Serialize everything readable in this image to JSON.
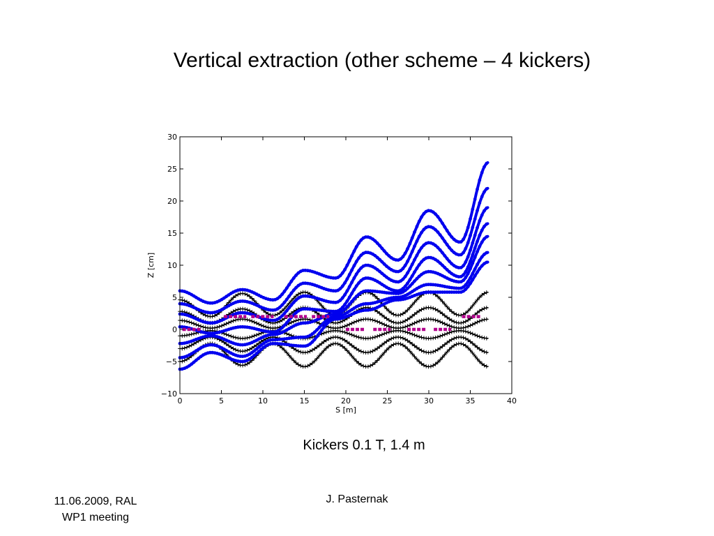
{
  "slide": {
    "title": "Vertical extraction (other scheme – 4 kickers)",
    "caption": "Kickers 0.1 T, 1.4 m",
    "footer_left_line1": "11.06.2009, RAL",
    "footer_left_line2": "WP1 meeting",
    "footer_center": "J. Pasternak"
  },
  "chart_data": {
    "type": "scatter",
    "title": "",
    "xlabel": "S [m]",
    "ylabel": "Z [cm]",
    "xlim": [
      0,
      40
    ],
    "ylim": [
      -10,
      30
    ],
    "xticks": [
      0,
      5,
      10,
      15,
      20,
      25,
      30,
      35,
      40
    ],
    "yticks": [
      -10,
      -5,
      0,
      5,
      10,
      15,
      20,
      25,
      30
    ],
    "grid": false,
    "legend": "none",
    "colors": {
      "extracted": "#0000ee",
      "circulating": "#000000",
      "kickers": "#b0008c",
      "frame": "#000000"
    },
    "series": [
      {
        "marker": "dot",
        "color": "#0000ee",
        "envelopes": [
          {
            "x": [
              0,
              3.75,
              7.5,
              11.25,
              15,
              18.75,
              22.5,
              26.25,
              30,
              33.75,
              37.2
            ],
            "y": [
              6.0,
              4.1,
              6.2,
              4.6,
              9.2,
              8.0,
              14.4,
              10.8,
              18.5,
              13.6,
              26.0
            ]
          },
          {
            "x": [
              0,
              3.75,
              7.5,
              11.25,
              15,
              18.75,
              22.5,
              26.25,
              30,
              33.75,
              37.2
            ],
            "y": [
              4.0,
              2.6,
              4.4,
              3.0,
              7.2,
              6.0,
              12.0,
              9.0,
              16.0,
              11.6,
              22.0
            ]
          },
          {
            "x": [
              0,
              3.75,
              7.5,
              11.25,
              15,
              18.75,
              22.5,
              26.25,
              30,
              33.75,
              37.2
            ],
            "y": [
              2.4,
              1.0,
              2.6,
              1.4,
              5.2,
              4.2,
              10.0,
              7.4,
              13.5,
              9.6,
              19.0
            ]
          },
          {
            "x": [
              0,
              3.75,
              7.5,
              11.25,
              15,
              18.75,
              22.5,
              26.25,
              30,
              33.75,
              37.2
            ],
            "y": [
              0.4,
              -0.6,
              0.4,
              -0.4,
              3.2,
              2.8,
              8.0,
              6.0,
              11.2,
              8.2,
              16.5
            ]
          },
          {
            "x": [
              0,
              3.75,
              7.5,
              11.25,
              15,
              18.75,
              22.5,
              26.25,
              30,
              33.75,
              37.2
            ],
            "y": [
              -2.2,
              -1.0,
              -2.4,
              -0.8,
              1.0,
              2.4,
              6.0,
              5.6,
              9.0,
              7.4,
              14.5
            ]
          },
          {
            "x": [
              0,
              3.75,
              7.5,
              11.25,
              15,
              18.75,
              22.5,
              26.25,
              30,
              33.75,
              37.2
            ],
            "y": [
              -4.4,
              -2.4,
              -4.2,
              -1.6,
              -1.2,
              2.0,
              4.0,
              5.0,
              7.0,
              6.4,
              12.0
            ]
          },
          {
            "x": [
              0,
              3.75,
              7.5,
              11.25,
              15,
              18.75,
              22.5,
              26.25,
              30,
              33.75,
              37.2
            ],
            "y": [
              -6.2,
              -3.6,
              -5.0,
              -2.2,
              -2.6,
              1.6,
              3.0,
              4.6,
              5.8,
              5.8,
              10.5
            ]
          }
        ]
      },
      {
        "marker": "plus",
        "color": "#000000",
        "envelopes": [
          {
            "x": [
              0,
              3.75,
              7.5,
              11.25,
              15,
              18.75,
              22.5,
              26.25,
              30,
              33.75,
              37.2
            ],
            "y": [
              4.6,
              2.0,
              5.6,
              2.2,
              5.8,
              2.2,
              5.8,
              2.2,
              5.8,
              2.2,
              5.8
            ]
          },
          {
            "x": [
              0,
              3.75,
              7.5,
              11.25,
              15,
              18.75,
              22.5,
              26.25,
              30,
              33.75,
              37.2
            ],
            "y": [
              2.8,
              1.0,
              3.2,
              1.0,
              3.4,
              1.0,
              3.4,
              1.0,
              3.4,
              1.0,
              3.4
            ]
          },
          {
            "x": [
              0,
              3.75,
              7.5,
              11.25,
              15,
              18.75,
              22.5,
              26.25,
              30,
              33.75,
              37.2
            ],
            "y": [
              1.4,
              0.2,
              1.6,
              0.2,
              1.6,
              0.2,
              1.6,
              0.2,
              1.6,
              0.2,
              1.6
            ]
          },
          {
            "x": [
              0,
              3.75,
              7.5,
              11.25,
              15,
              18.75,
              22.5,
              26.25,
              30,
              33.75,
              37.2
            ],
            "y": [
              -1.0,
              -0.2,
              -1.4,
              -0.2,
              -1.4,
              -0.2,
              -1.4,
              -0.2,
              -1.4,
              -0.2,
              -1.4
            ]
          },
          {
            "x": [
              0,
              3.75,
              7.5,
              11.25,
              15,
              18.75,
              22.5,
              26.25,
              30,
              33.75,
              37.2
            ],
            "y": [
              -3.0,
              -1.2,
              -3.4,
              -1.2,
              -3.6,
              -1.2,
              -3.6,
              -1.2,
              -3.6,
              -1.2,
              -3.6
            ]
          },
          {
            "x": [
              0,
              3.75,
              7.5,
              11.25,
              15,
              18.75,
              22.5,
              26.25,
              30,
              33.75,
              37.2
            ],
            "y": [
              -5.0,
              -2.2,
              -5.6,
              -2.2,
              -5.8,
              -2.2,
              -5.8,
              -2.2,
              -5.8,
              -2.2,
              -5.8
            ]
          }
        ]
      },
      {
        "marker": "segment",
        "color": "#b0008c",
        "segments": [
          {
            "x": [
              5.3,
              8.0
            ],
            "y": [
              2.0,
              2.0
            ]
          },
          {
            "x": [
              8.6,
              11.3
            ],
            "y": [
              2.0,
              2.0
            ]
          },
          {
            "x": [
              12.6,
              15.3
            ],
            "y": [
              2.0,
              2.0
            ]
          },
          {
            "x": [
              15.9,
              18.0
            ],
            "y": [
              2.0,
              2.0
            ]
          },
          {
            "x": [
              34.0,
              36.2
            ],
            "y": [
              2.0,
              2.0
            ]
          },
          {
            "x": [
              0.3,
              2.6
            ],
            "y": [
              0.0,
              0.0
            ]
          },
          {
            "x": [
              20.0,
              22.2
            ],
            "y": [
              0.0,
              0.0
            ]
          },
          {
            "x": [
              23.3,
              25.4
            ],
            "y": [
              0.0,
              0.0
            ]
          },
          {
            "x": [
              27.4,
              29.6
            ],
            "y": [
              0.0,
              0.0
            ]
          },
          {
            "x": [
              30.6,
              32.7
            ],
            "y": [
              0.0,
              0.0
            ]
          }
        ]
      }
    ]
  }
}
